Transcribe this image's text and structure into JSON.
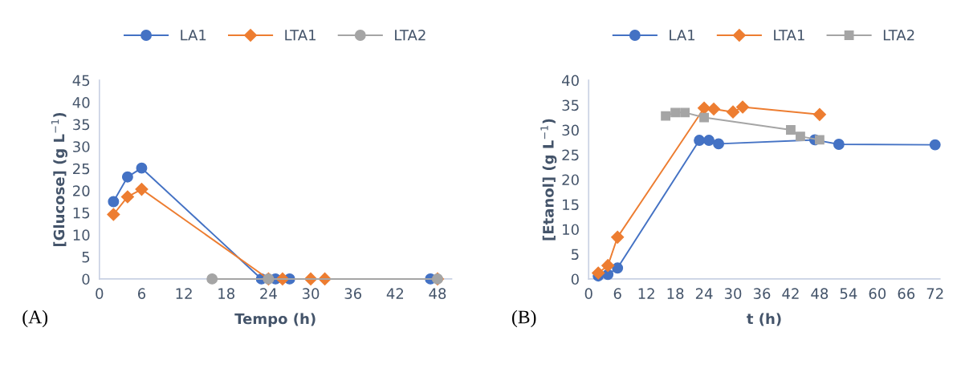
{
  "chart_data": [
    {
      "type": "line",
      "xlabel": "Tempo (h)",
      "ylabel": "[Glucose] (g L$^{−1}$)",
      "xlim": [
        0,
        50
      ],
      "xticks": [
        0,
        6,
        12,
        18,
        24,
        30,
        36,
        42,
        48
      ],
      "ylim": [
        0,
        45
      ],
      "yticks": [
        0,
        5,
        10,
        15,
        20,
        25,
        30,
        35,
        40,
        45
      ],
      "grid": false,
      "legend": "top",
      "annotations": [
        "(A)"
      ],
      "series": [
        {
          "name": "LA1",
          "color": "#4472c4",
          "marker": "circle",
          "x": [
            2,
            4,
            6,
            23,
            25,
            27,
            47
          ],
          "values": [
            17.5,
            23.1,
            25.1,
            0,
            0,
            0,
            0
          ]
        },
        {
          "name": "LTA1",
          "color": "#ed7d31",
          "marker": "diamond",
          "x": [
            2,
            4,
            6,
            24,
            26,
            30,
            32,
            48
          ],
          "values": [
            14.6,
            18.6,
            20.3,
            0,
            0,
            0,
            0,
            0
          ]
        },
        {
          "name": "LTA2",
          "color": "#a5a5a5",
          "marker": "circle",
          "x": [
            16,
            24,
            48
          ],
          "values": [
            0,
            0,
            0
          ]
        }
      ]
    },
    {
      "type": "line",
      "xlabel": "t (h)",
      "ylabel": "[Etanol] (g L$^{−1}$)",
      "xlim": [
        0,
        73
      ],
      "xticks": [
        0,
        6,
        12,
        18,
        24,
        30,
        36,
        42,
        48,
        54,
        60,
        66,
        72
      ],
      "ylim": [
        0,
        40
      ],
      "yticks": [
        0,
        5,
        10,
        15,
        20,
        25,
        30,
        35,
        40
      ],
      "grid": false,
      "legend": "top",
      "annotations": [
        "(B)"
      ],
      "series": [
        {
          "name": "LA1",
          "color": "#4472c4",
          "marker": "circle",
          "x": [
            2,
            4,
            6,
            23,
            25,
            27,
            47,
            52,
            72
          ],
          "values": [
            0.6,
            0.9,
            2.2,
            27.9,
            27.9,
            27.2,
            28.0,
            27.1,
            27.0
          ]
        },
        {
          "name": "LTA1",
          "color": "#ed7d31",
          "marker": "diamond",
          "x": [
            2,
            4,
            6,
            24,
            26,
            30,
            32,
            48
          ],
          "values": [
            1.2,
            2.7,
            8.4,
            34.4,
            34.2,
            33.6,
            34.6,
            33.1
          ]
        },
        {
          "name": "LTA2",
          "color": "#a5a5a5",
          "marker": "square",
          "x": [
            16,
            18,
            20,
            24,
            42,
            44,
            48
          ],
          "values": [
            32.8,
            33.5,
            33.5,
            32.5,
            30.0,
            28.7,
            28.0
          ]
        }
      ]
    }
  ]
}
